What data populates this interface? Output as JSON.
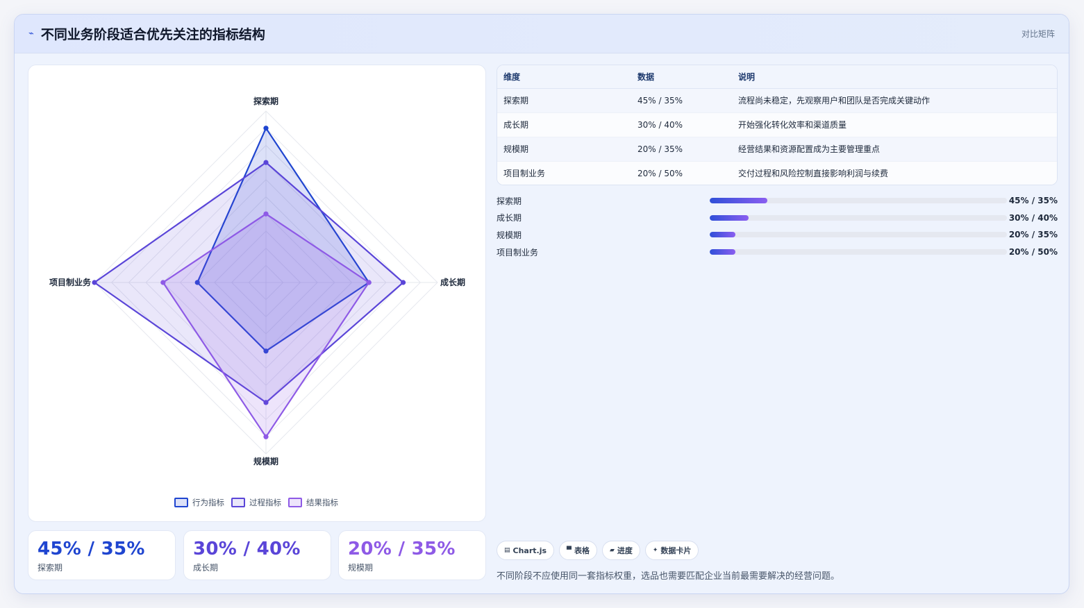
{
  "header": {
    "icon": "trend-line-icon",
    "title": "不同业务阶段适合优先关注的指标结构",
    "action_label": "对比矩阵"
  },
  "colors": {
    "behavior": "#1f45d0",
    "process": "#5a45d8",
    "result": "#8e5ae6"
  },
  "chart_data": {
    "type": "radar",
    "axes": [
      "探索期",
      "成长期",
      "规模期",
      "项目制业务"
    ],
    "rmax": 100,
    "series": [
      {
        "name": "行为指标",
        "values": [
          90,
          60,
          40,
          40
        ]
      },
      {
        "name": "过程指标",
        "values": [
          70,
          80,
          70,
          100
        ]
      },
      {
        "name": "结果指标",
        "values": [
          40,
          60,
          90,
          60
        ]
      }
    ]
  },
  "stats": [
    {
      "value": "45% / 35%",
      "label": "探索期",
      "color": "#1f45d0"
    },
    {
      "value": "30% / 40%",
      "label": "成长期",
      "color": "#5a45d8"
    },
    {
      "value": "20% / 35%",
      "label": "规模期",
      "color": "#8e5ae6"
    }
  ],
  "table": {
    "headers": [
      "维度",
      "数据",
      "说明"
    ],
    "rows": [
      [
        "探索期",
        "45% / 35%",
        "流程尚未稳定，先观察用户和团队是否完成关键动作"
      ],
      [
        "成长期",
        "30% / 40%",
        "开始强化转化效率和渠道质量"
      ],
      [
        "规模期",
        "20% / 35%",
        "经营结果和资源配置成为主要管理重点"
      ],
      [
        "项目制业务",
        "20% / 50%",
        "交付过程和风险控制直接影响利润与续费"
      ]
    ]
  },
  "progress": [
    {
      "label": "探索期",
      "value": "45% / 35%",
      "fraction": 0.195
    },
    {
      "label": "成长期",
      "value": "30% / 40%",
      "fraction": 0.13
    },
    {
      "label": "规模期",
      "value": "20% / 35%",
      "fraction": 0.087
    },
    {
      "label": "项目制业务",
      "value": "20% / 50%",
      "fraction": 0.087
    }
  ],
  "tags": [
    {
      "icon": "chart-icon",
      "glyph": "▤",
      "label": "Chart.js"
    },
    {
      "icon": "table-icon",
      "glyph": "▀",
      "label": "表格"
    },
    {
      "icon": "progress-icon",
      "glyph": "▰",
      "label": "进度"
    },
    {
      "icon": "sparkle-icon",
      "glyph": "✦",
      "label": "数据卡片"
    }
  ],
  "footnote": "不同阶段不应使用同一套指标权重，选品也需要匹配企业当前最需要解决的经营问题。"
}
